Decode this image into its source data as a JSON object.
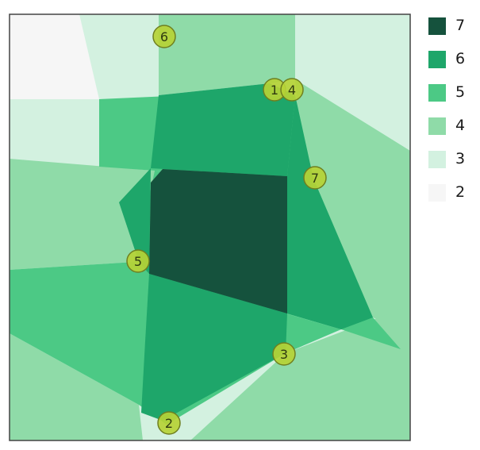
{
  "legend": {
    "items": [
      {
        "label": "7",
        "color": "#15523d"
      },
      {
        "label": "6",
        "color": "#1ea66a"
      },
      {
        "label": "5",
        "color": "#4cc985"
      },
      {
        "label": "4",
        "color": "#8fdba8"
      },
      {
        "label": "3",
        "color": "#d3f1e0"
      },
      {
        "label": "2",
        "color": "#f6f6f6"
      }
    ]
  },
  "markers": [
    {
      "label": "1"
    },
    {
      "label": "4"
    },
    {
      "label": "6"
    },
    {
      "label": "7"
    },
    {
      "label": "5"
    },
    {
      "label": "3"
    },
    {
      "label": "2"
    }
  ],
  "colors": {
    "marker_fill": "#b6d336",
    "marker_stroke": "#6f7f20",
    "frame": "#444444"
  }
}
